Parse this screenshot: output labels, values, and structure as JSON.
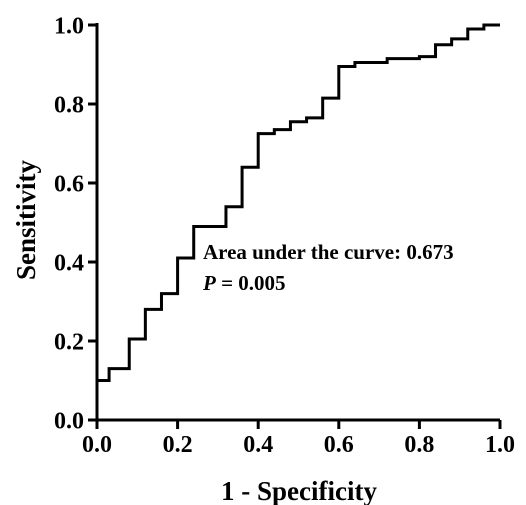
{
  "chart_data": {
    "type": "line",
    "xlabel": "1 - Specificity",
    "ylabel": "Sensitivity",
    "xlim": [
      0.0,
      1.0
    ],
    "ylim": [
      0.0,
      1.0
    ],
    "x_ticks": [
      "0.0",
      "0.2",
      "0.4",
      "0.6",
      "0.8",
      "1.0"
    ],
    "y_ticks": [
      "0.0",
      "0.2",
      "0.4",
      "0.6",
      "0.8",
      "1.0"
    ],
    "grid": false,
    "annotations": {
      "auc_text": "Area under the curve: 0.673",
      "p_letter": "P",
      "p_rest": " = 0.005"
    },
    "series": [
      {
        "step": true,
        "x": [
          0.0,
          0.03,
          0.08,
          0.12,
          0.16,
          0.2,
          0.24,
          0.32,
          0.36,
          0.4,
          0.44,
          0.48,
          0.52,
          0.56,
          0.6,
          0.64,
          0.72,
          0.8,
          0.84,
          0.88,
          0.92,
          0.96,
          1.0
        ],
        "y": [
          0.1,
          0.13,
          0.205,
          0.28,
          0.32,
          0.41,
          0.49,
          0.54,
          0.64,
          0.725,
          0.735,
          0.755,
          0.765,
          0.815,
          0.895,
          0.905,
          0.915,
          0.92,
          0.95,
          0.965,
          0.99,
          1.0,
          1.0
        ],
        "color": "#000000"
      }
    ]
  }
}
